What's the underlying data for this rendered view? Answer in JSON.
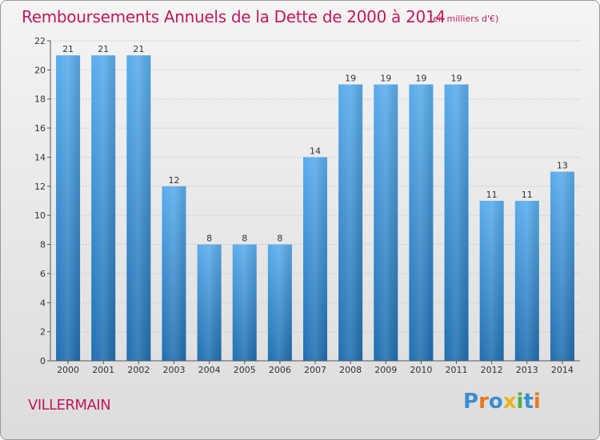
{
  "header": {
    "title": "Remboursements Annuels de la Dette de 2000 à 2014",
    "subtitle": "(en milliers d'€)"
  },
  "footer": {
    "commune": "VILLERMAIN",
    "logo": {
      "text": "Proxiti",
      "letters": [
        {
          "char": "P",
          "color": "#3a8fd0"
        },
        {
          "char": "r",
          "color": "#e8771f"
        },
        {
          "char": "o",
          "color": "#3a8fd0"
        },
        {
          "char": "x",
          "color": "#e8b41f"
        },
        {
          "char": "i",
          "color": "#4caf50"
        },
        {
          "char": "t",
          "color": "#3a8fd0"
        },
        {
          "char": "i",
          "color": "#e8771f"
        }
      ]
    }
  },
  "colors": {
    "bar_top": "#5aacec",
    "bar_bottom": "#1f6fb0",
    "accent": "#c2185b"
  },
  "chart_data": {
    "type": "bar",
    "title": "Remboursements Annuels de la Dette de 2000 à 2014",
    "subtitle": "(en milliers d'€)",
    "categories": [
      "2000",
      "2001",
      "2002",
      "2003",
      "2004",
      "2005",
      "2006",
      "2007",
      "2008",
      "2009",
      "2010",
      "2011",
      "2012",
      "2013",
      "2014"
    ],
    "values": [
      21,
      21,
      21,
      12,
      8,
      8,
      8,
      14,
      19,
      19,
      19,
      19,
      11,
      11,
      13
    ],
    "xlabel": "",
    "ylabel": "",
    "ylim": [
      0,
      22
    ],
    "yticks": [
      0,
      2,
      4,
      6,
      8,
      10,
      12,
      14,
      16,
      18,
      20,
      22
    ],
    "grid": true,
    "legend": "none"
  }
}
